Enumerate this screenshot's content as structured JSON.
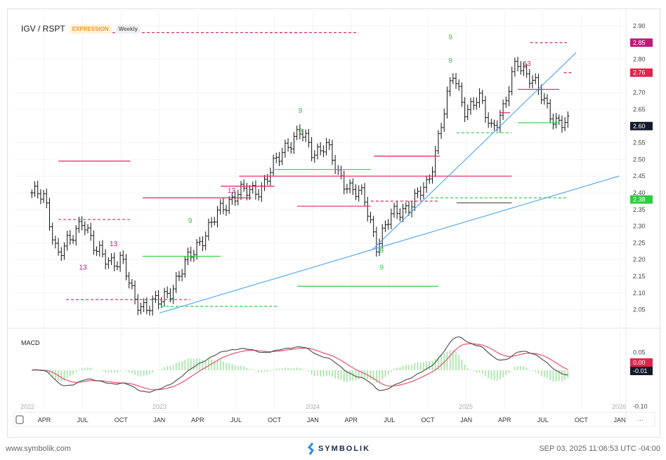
{
  "header": {
    "symbol": "IGV / RSPT",
    "type_badge": "EXPRESSION",
    "interval_badge": "Weekly"
  },
  "macd_label": "MACD",
  "footer": {
    "site": "www.symbolik.com",
    "brand": "SYMBOLIK",
    "timestamp": "SEP 03, 2025 11:06:53 UTC -04:00"
  },
  "time_axis": {
    "labels": [
      "APR",
      "JUL",
      "OCT",
      "JAN",
      "APR",
      "JUL",
      "OCT",
      "JAN",
      "APR",
      "JUL",
      "OCT",
      "JAN",
      "APR",
      "JUL",
      "OCT",
      "JAN"
    ],
    "years": [
      "2022",
      "2023",
      "2024",
      "2025",
      "2026"
    ],
    "more": "···"
  },
  "colors": {
    "up_green": "#2ecc40",
    "red": "#e0245e",
    "magenta": "#c2187a",
    "blue": "#4aa3f0",
    "macd": "#555555",
    "signal": "#e8506e",
    "hist": "#9be39b"
  },
  "chart_data": {
    "type": "line",
    "title": "IGV / RSPT",
    "interval": "weekly",
    "series_start": "2022-03",
    "monthly_closes": [
      2.4,
      2.38,
      2.22,
      2.25,
      2.33,
      2.22,
      2.2,
      2.2,
      2.08,
      2.06,
      2.07,
      2.12,
      2.18,
      2.25,
      2.3,
      2.36,
      2.4,
      2.4,
      2.42,
      2.48,
      2.55,
      2.58,
      2.52,
      2.55,
      2.45,
      2.42,
      2.38,
      2.25,
      2.32,
      2.35,
      2.38,
      2.42,
      2.6,
      2.75,
      2.65,
      2.68,
      2.6,
      2.65,
      2.8,
      2.75,
      2.68,
      2.62,
      2.6
    ],
    "price_axis": {
      "ticks": [
        "2.90",
        "2.80",
        "2.70",
        "2.65",
        "2.55",
        "2.50",
        "2.45",
        "2.40",
        "2.35",
        "2.30",
        "2.25",
        "2.20",
        "2.15",
        "2.10",
        "2.05"
      ],
      "range": [
        2.02,
        2.92
      ]
    },
    "price_badges": [
      {
        "value": "2.85",
        "color": "#c2187a"
      },
      {
        "value": "2.76",
        "color": "#e0244a"
      },
      {
        "value": "2.60",
        "color": "#131a2a"
      },
      {
        "value": "2.38",
        "color": "#2ecc40"
      }
    ],
    "macd_axis": {
      "ticks": [
        "0.05",
        "-0.10"
      ],
      "range": [
        -0.11,
        0.08
      ],
      "badges": [
        {
          "value": "0.00",
          "color": "#e0244a"
        },
        {
          "value": "-0.01",
          "color": "#131a2a"
        }
      ]
    },
    "levels": [
      [
        2022.34,
        2022.81,
        2.495,
        "red",
        0
      ],
      [
        2022.34,
        2022.81,
        2.32,
        "red",
        1
      ],
      [
        2022.39,
        2023.2,
        2.08,
        "red",
        1
      ],
      [
        2022.89,
        2023.6,
        2.385,
        "red",
        0
      ],
      [
        2022.89,
        2023.4,
        2.21,
        "green",
        0
      ],
      [
        2023.01,
        2023.77,
        2.06,
        "green",
        1
      ],
      [
        2023.4,
        2023.75,
        2.42,
        "red",
        0
      ],
      [
        2023.52,
        2024.38,
        2.45,
        "red",
        0
      ],
      [
        2023.75,
        2024.38,
        2.47,
        "green",
        0
      ],
      [
        2024.4,
        2024.83,
        2.51,
        "red",
        0
      ],
      [
        2024.38,
        2025.3,
        2.45,
        "red",
        0
      ],
      [
        2023.9,
        2024.38,
        2.36,
        "red",
        0
      ],
      [
        2023.9,
        2024.82,
        2.12,
        "green",
        0
      ],
      [
        2024.38,
        2024.83,
        2.375,
        "red",
        1
      ],
      [
        2024.77,
        2025.66,
        2.385,
        "green",
        1
      ],
      [
        2024.94,
        2025.3,
        2.37,
        "grey",
        0
      ],
      [
        2024.94,
        2025.3,
        2.58,
        "green",
        1
      ],
      [
        2025.22,
        2025.29,
        2.64,
        "red",
        0
      ],
      [
        2025.34,
        2025.61,
        2.71,
        "red",
        0
      ],
      [
        2025.34,
        2025.61,
        2.61,
        "green",
        0
      ],
      [
        2025.42,
        2025.66,
        2.85,
        "magenta",
        1
      ],
      [
        2023.72,
        2023.9,
        2.88,
        "red",
        1
      ],
      [
        2022.5,
        2024.3,
        2.88,
        "red",
        1
      ],
      [
        2025.64,
        2025.69,
        2.76,
        "red",
        1
      ]
    ],
    "trendlines": [
      [
        2023.0,
        2.04,
        2026.0,
        2.45
      ],
      [
        2024.39,
        2.23,
        2025.72,
        2.82
      ]
    ],
    "markers": [
      {
        "t": 2022.5,
        "p": 2.17,
        "text": "13",
        "color": "magenta"
      },
      {
        "t": 2022.7,
        "p": 2.24,
        "text": "13",
        "color": "magenta"
      },
      {
        "t": 2023.2,
        "p": 2.31,
        "text": "9",
        "color": "green"
      },
      {
        "t": 2023.47,
        "p": 2.4,
        "text": "13",
        "color": "magenta"
      },
      {
        "t": 2023.92,
        "p": 2.64,
        "text": "9",
        "color": "green"
      },
      {
        "t": 2023.92,
        "p": 2.58,
        "text": "9",
        "color": "green"
      },
      {
        "t": 2024.45,
        "p": 2.22,
        "text": "9",
        "color": "green"
      },
      {
        "t": 2024.45,
        "p": 2.17,
        "text": "9",
        "color": "green"
      },
      {
        "t": 2024.9,
        "p": 2.86,
        "text": "9",
        "color": "green"
      },
      {
        "t": 2024.9,
        "p": 2.79,
        "text": "9",
        "color": "green"
      },
      {
        "t": 2025.4,
        "p": 2.78,
        "text": "13",
        "color": "red"
      }
    ]
  }
}
